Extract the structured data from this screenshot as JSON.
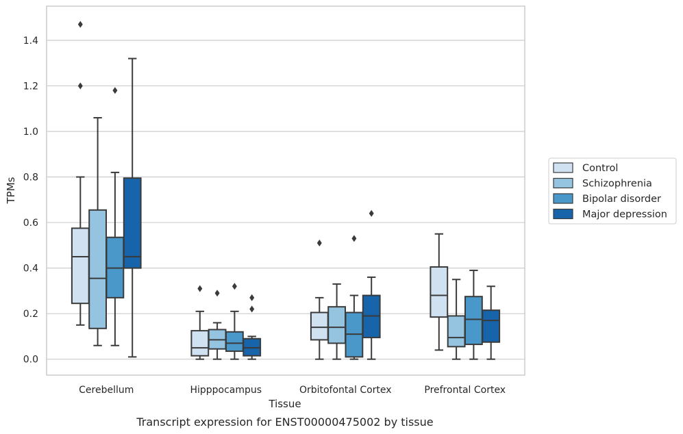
{
  "chart_data": {
    "type": "box",
    "caption": "Transcript expression for ENST00000475002 by tissue",
    "xlabel": "Tissue",
    "ylabel": "TPMs",
    "ylim": [
      -0.07,
      1.55
    ],
    "yticks": [
      0.0,
      0.2,
      0.4,
      0.6,
      0.8,
      1.0,
      1.2,
      1.4
    ],
    "ytick_labels": [
      "0.0",
      "0.2",
      "0.4",
      "0.6",
      "0.8",
      "1.0",
      "1.2",
      "1.4"
    ],
    "grid": "horizontal",
    "legend_position": "right",
    "categories": [
      "Cerebellum",
      "Hipppocampus",
      "Orbitofontal Cortex",
      "Prefrontal Cortex"
    ],
    "series": [
      {
        "name": "Control",
        "color": "#d0e1f2",
        "boxes": [
          {
            "whislo": 0.15,
            "q1": 0.245,
            "med": 0.45,
            "q3": 0.575,
            "whishi": 0.8,
            "fliers": [
              1.47,
              1.2
            ]
          },
          {
            "whislo": 0.0,
            "q1": 0.015,
            "med": 0.05,
            "q3": 0.125,
            "whishi": 0.21,
            "fliers": [
              0.31
            ]
          },
          {
            "whislo": 0.0,
            "q1": 0.085,
            "med": 0.14,
            "q3": 0.205,
            "whishi": 0.27,
            "fliers": [
              0.51
            ]
          },
          {
            "whislo": 0.04,
            "q1": 0.185,
            "med": 0.28,
            "q3": 0.405,
            "whishi": 0.55,
            "fliers": []
          }
        ]
      },
      {
        "name": "Schizophrenia",
        "color": "#94c4df",
        "boxes": [
          {
            "whislo": 0.06,
            "q1": 0.135,
            "med": 0.355,
            "q3": 0.655,
            "whishi": 1.06,
            "fliers": []
          },
          {
            "whislo": 0.0,
            "q1": 0.045,
            "med": 0.085,
            "q3": 0.13,
            "whishi": 0.16,
            "fliers": [
              0.29
            ]
          },
          {
            "whislo": 0.0,
            "q1": 0.07,
            "med": 0.14,
            "q3": 0.23,
            "whishi": 0.33,
            "fliers": []
          },
          {
            "whislo": 0.0,
            "q1": 0.055,
            "med": 0.095,
            "q3": 0.19,
            "whishi": 0.35,
            "fliers": []
          }
        ]
      },
      {
        "name": "Bipolar disorder",
        "color": "#4a98c9",
        "boxes": [
          {
            "whislo": 0.06,
            "q1": 0.27,
            "med": 0.4,
            "q3": 0.535,
            "whishi": 0.82,
            "fliers": [
              1.18
            ]
          },
          {
            "whislo": 0.0,
            "q1": 0.035,
            "med": 0.07,
            "q3": 0.12,
            "whishi": 0.21,
            "fliers": [
              0.32
            ]
          },
          {
            "whislo": 0.0,
            "q1": 0.01,
            "med": 0.11,
            "q3": 0.205,
            "whishi": 0.28,
            "fliers": [
              0.53
            ]
          },
          {
            "whislo": 0.0,
            "q1": 0.065,
            "med": 0.175,
            "q3": 0.275,
            "whishi": 0.39,
            "fliers": []
          }
        ]
      },
      {
        "name": "Major depression",
        "color": "#1764ab",
        "boxes": [
          {
            "whislo": 0.01,
            "q1": 0.4,
            "med": 0.45,
            "q3": 0.795,
            "whishi": 1.32,
            "fliers": []
          },
          {
            "whislo": 0.0,
            "q1": 0.015,
            "med": 0.05,
            "q3": 0.09,
            "whishi": 0.1,
            "fliers": [
              0.27,
              0.22
            ]
          },
          {
            "whislo": 0.0,
            "q1": 0.095,
            "med": 0.19,
            "q3": 0.28,
            "whishi": 0.36,
            "fliers": [
              0.64
            ]
          },
          {
            "whislo": 0.0,
            "q1": 0.075,
            "med": 0.17,
            "q3": 0.215,
            "whishi": 0.32,
            "fliers": []
          }
        ]
      }
    ]
  }
}
